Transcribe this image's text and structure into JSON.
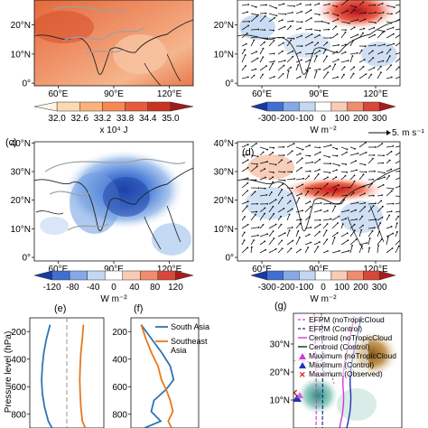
{
  "chart_data": [
    {
      "id": "a",
      "type": "heatmap",
      "panel_label": "",
      "xticks": [
        "60°E",
        "90°E",
        "120°E"
      ],
      "yticks": [
        "0°",
        "10°N",
        "20°N"
      ],
      "colorbar": {
        "ticks": [
          "32.0",
          "32.6",
          "33.2",
          "33.8",
          "34.4",
          "35.0"
        ],
        "unit": "x 10⁴ J",
        "colors": [
          "#fff3e6",
          "#fdd8b4",
          "#fbb27d",
          "#f58a55",
          "#e65c3a",
          "#c93322",
          "#9f1c1a"
        ]
      }
    },
    {
      "id": "b",
      "type": "heatmap",
      "panel_label": "",
      "xticks": [
        "60°E",
        "90°E",
        "120°E"
      ],
      "yticks": [
        "0°",
        "10°N",
        "20°N"
      ],
      "colorbar": {
        "ticks": [
          "-300",
          "-200",
          "-100",
          "0",
          "100",
          "200",
          "300"
        ],
        "unit": "W m⁻²"
      }
    },
    {
      "id": "c",
      "type": "heatmap",
      "panel_label": "(c)",
      "xticks": [
        "60°E",
        "90°E",
        "120°E"
      ],
      "yticks": [
        "0°",
        "10°N",
        "20°N",
        "30°N",
        "40°N"
      ],
      "colorbar": {
        "ticks": [
          "-120",
          "-80",
          "-40",
          "0",
          "40",
          "80",
          "120"
        ],
        "unit": "W m⁻²"
      }
    },
    {
      "id": "d",
      "type": "heatmap",
      "panel_label": "(d)",
      "reference_vector": "5. m s⁻¹",
      "xticks": [
        "60°E",
        "90°E",
        "120°E"
      ],
      "yticks": [
        "0°",
        "10°N",
        "20°N",
        "30°N",
        "40°N"
      ],
      "colorbar": {
        "ticks": [
          "-300",
          "-200",
          "-100",
          "0",
          "100",
          "200",
          "300"
        ],
        "unit": "W m⁻²"
      }
    },
    {
      "id": "e",
      "type": "line",
      "panel_label": "(e)",
      "ylabel": "Pressure level (hPa)",
      "yticks": [
        200,
        400,
        600,
        800
      ],
      "ylim": [
        100,
        900
      ],
      "xlim": [
        -1,
        1
      ],
      "series": [
        {
          "color": "#2f74b5",
          "x": [
            -0.45,
            -0.55,
            -0.62,
            -0.66,
            -0.68,
            -0.66,
            -0.6,
            -0.5,
            -0.4
          ],
          "y": [
            150,
            250,
            350,
            450,
            550,
            650,
            750,
            850,
            900
          ]
        },
        {
          "color": "#e8781c",
          "x": [
            0.45,
            0.42,
            0.38,
            0.36,
            0.35,
            0.36,
            0.38,
            0.42,
            0.5
          ],
          "y": [
            150,
            250,
            350,
            450,
            550,
            650,
            750,
            850,
            900
          ]
        }
      ]
    },
    {
      "id": "f",
      "type": "line",
      "panel_label": "(f)",
      "yticks": [
        200,
        400,
        600,
        800
      ],
      "ylim": [
        100,
        900
      ],
      "xlim": [
        0,
        1
      ],
      "legend": [
        "South Asia",
        "Southeast Asia"
      ],
      "series": [
        {
          "name": "South Asia",
          "color": "#2f74b5",
          "x": [
            0.15,
            0.3,
            0.45,
            0.58,
            0.63,
            0.52,
            0.34,
            0.3,
            0.44,
            0.2
          ],
          "y": [
            150,
            250,
            350,
            450,
            550,
            620,
            700,
            780,
            850,
            900
          ]
        },
        {
          "name": "Southeast Asia",
          "color": "#e8781c",
          "x": [
            0.15,
            0.22,
            0.3,
            0.4,
            0.45,
            0.52,
            0.58,
            0.62,
            0.55,
            0.6
          ],
          "y": [
            150,
            250,
            350,
            450,
            550,
            620,
            700,
            780,
            850,
            900
          ]
        }
      ]
    },
    {
      "id": "g",
      "type": "heatmap",
      "panel_label": "(g)",
      "yticks": [
        "10°N",
        "20°N",
        "30°N"
      ],
      "legend": [
        "EFPM (noTropicCloud",
        "EFPM (Control)",
        "Centroid (noTropicCloud",
        "Centroid (Control)",
        "Maximum (noTropicCloud",
        "Maximum (Control)",
        "Maximum (Observed)"
      ]
    }
  ]
}
